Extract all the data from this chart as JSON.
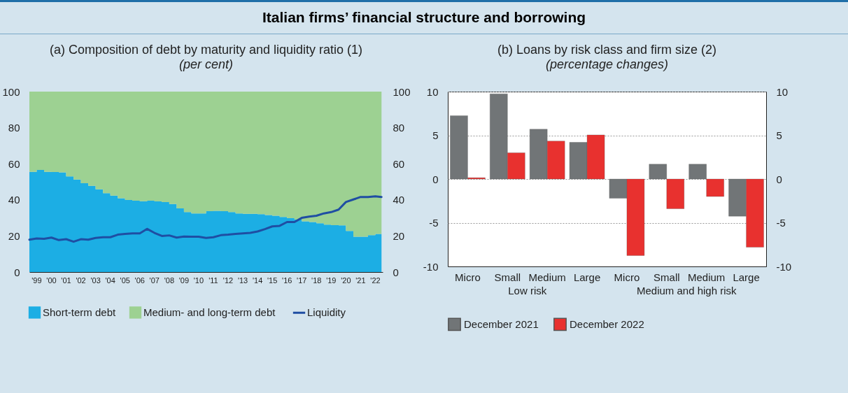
{
  "chart_data": [
    {
      "type": "area",
      "title": "(a) Composition of debt by maturity and liquidity ratio (1)",
      "subtitle": "(per cent)",
      "annotations": [
        "Italian firms’ financial structure and borrowing"
      ],
      "stacked": true,
      "legend": "bottom",
      "x": [
        "1999-01",
        "1999-07",
        "2000-01",
        "2000-07",
        "2001-01",
        "2001-07",
        "2002-01",
        "2002-07",
        "2003-01",
        "2003-07",
        "2004-01",
        "2004-07",
        "2005-01",
        "2005-07",
        "2006-01",
        "2006-07",
        "2007-01",
        "2007-07",
        "2008-01",
        "2008-07",
        "2009-01",
        "2009-07",
        "2010-01",
        "2010-07",
        "2011-01",
        "2011-07",
        "2012-01",
        "2012-07",
        "2013-01",
        "2013-07",
        "2014-01",
        "2014-07",
        "2015-01",
        "2015-07",
        "2016-01",
        "2016-07",
        "2017-01",
        "2017-07",
        "2018-01",
        "2018-07",
        "2019-01",
        "2019-07",
        "2020-01",
        "2020-07",
        "2021-01",
        "2021-07",
        "2022-01",
        "2022-07",
        "2022-12"
      ],
      "series": [
        {
          "name": "Short-term debt",
          "color": "#1caee4",
          "values": [
            55.5,
            56.6,
            55.5,
            55.4,
            55.2,
            53,
            51.3,
            49.2,
            47.8,
            45.8,
            43.7,
            42.3,
            40.9,
            39.9,
            39.5,
            39.2,
            39.5,
            39.1,
            38.8,
            37.7,
            35.3,
            33.2,
            32.5,
            32.5,
            33.7,
            33.9,
            33.7,
            33.2,
            32.5,
            32.3,
            32.3,
            32.1,
            31.6,
            31.2,
            30.5,
            29.8,
            29.1,
            28.1,
            27.7,
            27,
            26.3,
            26,
            25.9,
            22.8,
            19.6,
            19.6,
            20.4,
            21.1,
            21.1
          ]
        },
        {
          "name": "Medium- and long-term debt",
          "color": "#9dd192",
          "values": [
            44.5,
            43.4,
            44.5,
            44.6,
            44.8,
            47,
            48.7,
            50.8,
            52.2,
            54.2,
            56.3,
            57.7,
            59.1,
            60.1,
            60.5,
            60.8,
            60.5,
            60.9,
            61.2,
            62.3,
            64.7,
            66.8,
            67.5,
            67.5,
            66.3,
            66.1,
            66.3,
            66.8,
            67.5,
            67.7,
            67.7,
            67.9,
            68.4,
            68.8,
            69.5,
            70.2,
            70.9,
            71.9,
            72.3,
            73,
            73.7,
            74,
            74.1,
            77.2,
            80.4,
            80.4,
            79.6,
            78.9,
            78.9
          ]
        },
        {
          "name": "Liquidity",
          "type": "line",
          "color": "#1f4ea3",
          "values": [
            17.9,
            18.6,
            18.4,
            19.1,
            17.7,
            18.2,
            16.8,
            18.2,
            17.9,
            18.9,
            19.3,
            19.3,
            20.7,
            21.1,
            21.4,
            21.4,
            23.9,
            21.7,
            20,
            20.3,
            19.1,
            19.7,
            19.6,
            19.6,
            18.9,
            19.3,
            20.4,
            20.7,
            21.1,
            21.4,
            21.7,
            22.5,
            23.8,
            25.3,
            25.6,
            27.7,
            27.7,
            30,
            30.7,
            31.2,
            32.5,
            33.2,
            34.6,
            38.8,
            40.2,
            41.6,
            41.6,
            42,
            41.6
          ]
        }
      ],
      "xlim": [
        "1999-01-01",
        "2022-12-31"
      ],
      "xticks": [
        {
          "value": "1999-07",
          "label": "'99"
        },
        {
          "value": "2000-07",
          "label": "'00"
        },
        {
          "value": "2001-07",
          "label": "'01"
        },
        {
          "value": "2002-07",
          "label": "'02"
        },
        {
          "value": "2003-07",
          "label": "'03"
        },
        {
          "value": "2004-07",
          "label": "'04"
        },
        {
          "value": "2005-07",
          "label": "'05"
        },
        {
          "value": "2006-07",
          "label": "'06"
        },
        {
          "value": "2007-07",
          "label": "'07"
        },
        {
          "value": "2008-07",
          "label": "'08"
        },
        {
          "value": "2009-07",
          "label": "'09"
        },
        {
          "value": "2010-07",
          "label": "'10"
        },
        {
          "value": "2011-07",
          "label": "'11"
        },
        {
          "value": "2012-07",
          "label": "'12"
        },
        {
          "value": "2013-07",
          "label": "'13"
        },
        {
          "value": "2014-07",
          "label": "'14"
        },
        {
          "value": "2015-07",
          "label": "'15"
        },
        {
          "value": "2016-07",
          "label": "'16"
        },
        {
          "value": "2017-07",
          "label": "'17"
        },
        {
          "value": "2018-07",
          "label": "'18"
        },
        {
          "value": "2019-07",
          "label": "'19"
        },
        {
          "value": "2020-07",
          "label": "'20"
        },
        {
          "value": "2021-07",
          "label": "'21"
        },
        {
          "value": "2022-07",
          "label": "'22"
        }
      ],
      "ylim": [
        0,
        100
      ],
      "yticks": [
        0,
        20,
        40,
        60,
        80,
        100
      ],
      "y2lim": [
        0,
        100
      ],
      "y2ticks": [
        0,
        20,
        40,
        60,
        80,
        100
      ]
    },
    {
      "type": "bar",
      "title": "(b) Loans by risk class and firm size (2)",
      "subtitle": "(percentage changes)",
      "annotations": [
        "Low risk",
        "Medium and high risk"
      ],
      "legend": "bottom",
      "grid": "y",
      "categories": [
        "Micro",
        "Small",
        "Medium",
        "Large",
        "Micro",
        "Small",
        "Medium",
        "Large"
      ],
      "series": [
        {
          "name": "December 2021",
          "color": "#717577",
          "values": [
            7.25,
            9.75,
            5.7,
            4.2,
            -2.2,
            1.7,
            1.7,
            -4.25
          ]
        },
        {
          "name": "December 2022",
          "color": "#e8312f",
          "values": [
            0.15,
            3.0,
            4.35,
            5.05,
            -8.75,
            -3.4,
            -2.0,
            -7.8
          ]
        }
      ],
      "ylim": [
        -10,
        10
      ],
      "yticks": [
        -10,
        -5,
        0,
        5,
        10
      ],
      "y2lim": [
        -10,
        10
      ],
      "y2ticks": [
        -10,
        -5,
        0,
        5,
        10
      ]
    }
  ]
}
